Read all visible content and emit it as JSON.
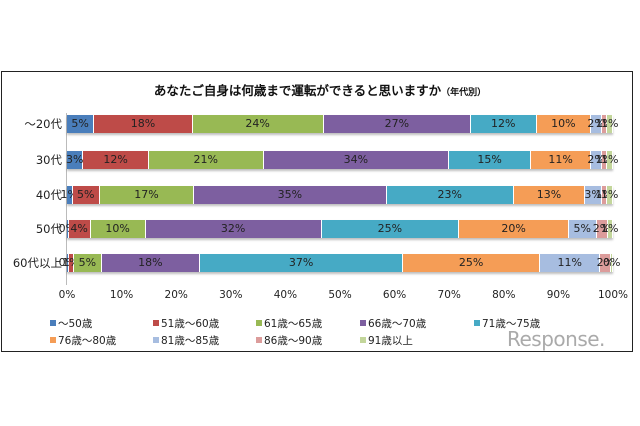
{
  "chart_data": {
    "type": "bar",
    "orientation": "horizontal-stacked-100",
    "title": "あなたご自身は何歳まで運転ができると思いますか",
    "subtitle": "（年代別）",
    "xlabel": "",
    "ylabel": "",
    "xlim": [
      0,
      100
    ],
    "x_ticks": [
      "0%",
      "10%",
      "20%",
      "30%",
      "40%",
      "50%",
      "60%",
      "70%",
      "80%",
      "90%",
      "100%"
    ],
    "grid": false,
    "legend_position": "bottom",
    "categories": [
      "～20代",
      "30代",
      "40代",
      "50代",
      "60代以上"
    ],
    "series": [
      {
        "name": "～50歳",
        "color": "#4a7ebb",
        "values": [
          5,
          3,
          1,
          0,
          0
        ]
      },
      {
        "name": "51歳～60歳",
        "color": "#be4b48",
        "values": [
          18,
          12,
          5,
          4,
          1
        ]
      },
      {
        "name": "61歳～65歳",
        "color": "#98b954",
        "values": [
          24,
          21,
          17,
          10,
          5
        ]
      },
      {
        "name": "66歳～70歳",
        "color": "#7d5fa0",
        "values": [
          27,
          34,
          35,
          32,
          18
        ]
      },
      {
        "name": "71歳～75歳",
        "color": "#46aac5",
        "values": [
          12,
          15,
          23,
          25,
          37
        ]
      },
      {
        "name": "76歳～80歳",
        "color": "#f59d56",
        "values": [
          10,
          11,
          13,
          20,
          25
        ]
      },
      {
        "name": "81歳～85歳",
        "color": "#a7bde0",
        "values": [
          2,
          2,
          3,
          5,
          11
        ]
      },
      {
        "name": "86歳～90歳",
        "color": "#dc9c9b",
        "values": [
          1,
          1,
          1,
          2,
          2
        ]
      },
      {
        "name": "91歳以上",
        "color": "#c3d69b",
        "values": [
          1,
          1,
          1,
          1,
          0
        ]
      }
    ]
  },
  "watermark": "Response."
}
